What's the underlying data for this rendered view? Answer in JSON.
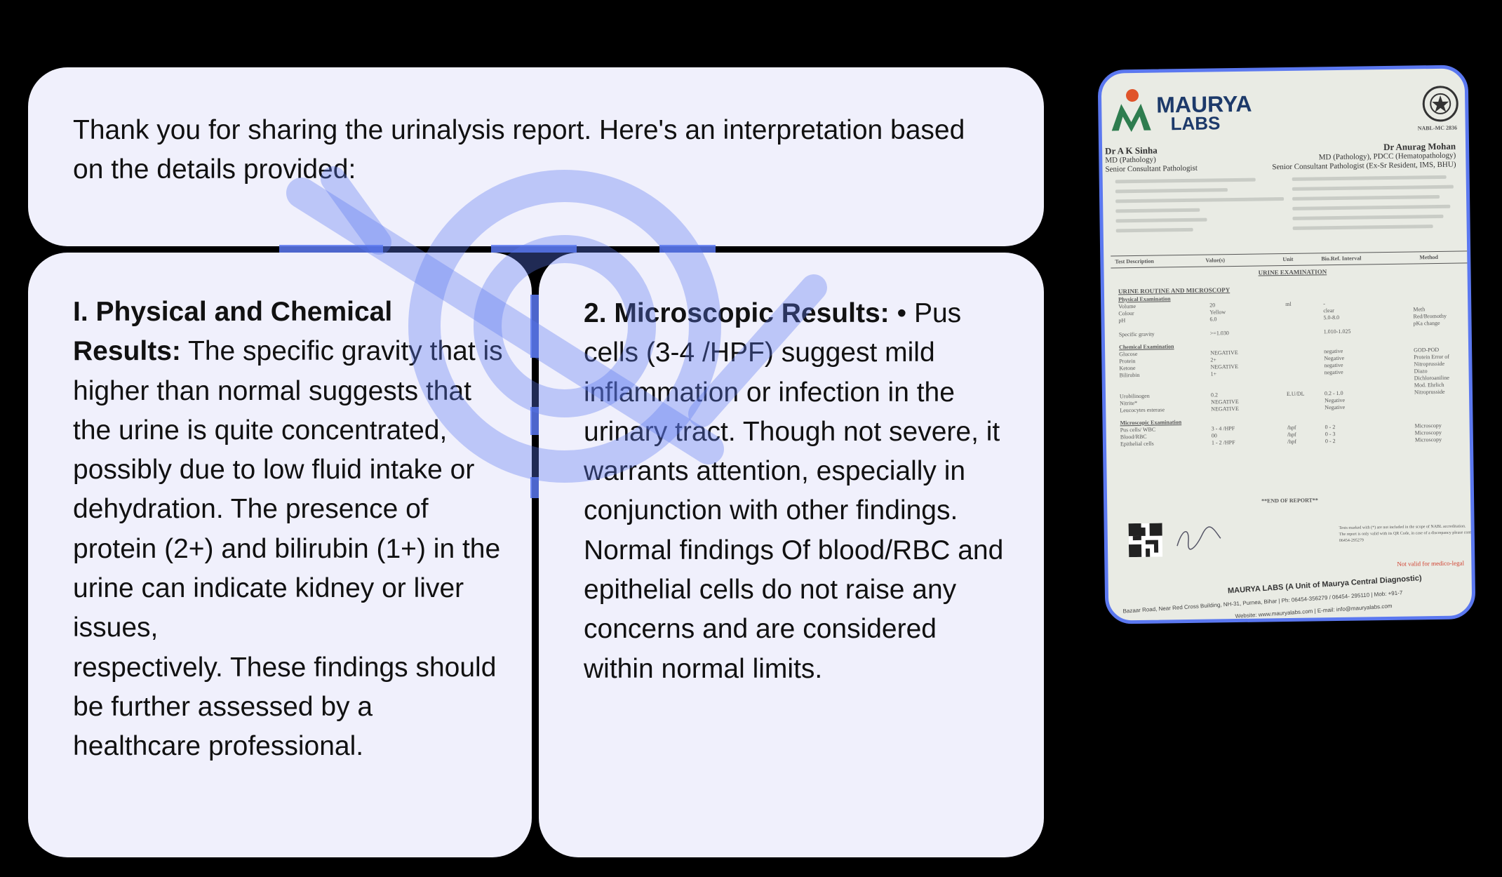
{
  "intro": {
    "text": "Thank you for sharing the urinalysis report. Here's an interpretation based on the details provided:"
  },
  "physical": {
    "heading": "I. Physical and Chemical Results:",
    "body": "The specific gravity that is higher than normal suggests that the urine is quite concentrated, possibly due to low fluid intake or dehydration. The presence of protein (2+) and bilirubin (1+) in the urine can indicate kidney or liver issues,",
    "body2": "respectively. These findings should be further assessed by a healthcare professional."
  },
  "microscopic": {
    "heading": "2. Microscopic Results:",
    "body": "• Pus cells (3-4 /HPF) suggest mild inflammation or infection in the urinary tract. Though not severe, it warrants attention, especially in conjunction with other findings.",
    "body2": "Normal findings Of blood/RBC and epithelial cells do not raise any concerns and are considered",
    "body3": "within normal limits."
  },
  "report": {
    "lab_name": "MAURYA",
    "lab_sub": "LABS",
    "accreditation": "NABL-MC 2836",
    "doctor_left": {
      "name": "Dr A K Sinha",
      "degree": "MD (Pathology)",
      "title": "Senior Consultant Pathologist"
    },
    "doctor_right": {
      "name": "Dr Anurag Mohan",
      "degree": "MD (Pathology), PDCC (Hematopathology)",
      "title": "Senior Consultant Pathologist (Ex-Sr Resident, IMS, BHU)"
    },
    "columns": [
      "Test Description",
      "Value(s)",
      "Unit",
      "Bio.Ref. Interval",
      "Method"
    ],
    "exam_title": "URINE EXAMINATION",
    "section_title": "URINE ROUTINE AND MICROSCOPY",
    "groups": [
      {
        "title": "Physical Examination",
        "rows": [
          [
            "Volume",
            "20",
            "ml",
            "-",
            ""
          ],
          [
            "Colour",
            "Yellow",
            "",
            "clear",
            "Meth"
          ],
          [
            "pH",
            "6.0",
            "",
            "5.0-8.0",
            "Red/Bromothy"
          ],
          [
            "",
            "",
            "",
            "",
            "pKa change"
          ],
          [
            "Specific gravity",
            ">=1.030",
            "",
            "1.010-1.025",
            ""
          ]
        ]
      },
      {
        "title": "Chemical Examination",
        "rows": [
          [
            "Glucose",
            "NEGATIVE",
            "",
            "negative",
            "GOD-POD"
          ],
          [
            "Protein",
            "2+",
            "",
            "Negative",
            "Protein Error of"
          ],
          [
            "Ketone",
            "NEGATIVE",
            "",
            "negative",
            "Nitroprusside"
          ],
          [
            "Bilirubin",
            "1+",
            "",
            "negative",
            "Diazo"
          ],
          [
            "",
            "",
            "",
            "",
            "Dichloroaniline"
          ],
          [
            "",
            "",
            "",
            "",
            "Mod. Ehrlich"
          ],
          [
            "Urobilinogen",
            "0.2",
            "E.U/DL",
            "0.2 - 1.0",
            "Nitroprusside"
          ],
          [
            "Nitrite*",
            "NEGATIVE",
            "",
            "Negative",
            ""
          ],
          [
            "Leucocytes esterase",
            "NEGATIVE",
            "",
            "Negative",
            ""
          ]
        ]
      },
      {
        "title": "Microscopic Examination",
        "rows": [
          [
            "Pus cells/ WBC",
            "3 - 4 /HPF",
            "/hpf",
            "0 - 2",
            "Microscopy"
          ],
          [
            "Blood/RBC",
            "00",
            "/hpf",
            "0 - 3",
            "Microscopy"
          ],
          [
            "Epithelial cells",
            "1 - 2 /HPF",
            "/hpf",
            "0 - 2",
            "Microscopy"
          ]
        ]
      }
    ],
    "end": "**END OF REPORT**",
    "note": "Tests marked with (*) are not included in the scope of NABL accreditation.",
    "note2": "The report is only valid with its QR Code, in case of a discrepancy please contact us",
    "note3": "06454-295279",
    "not_valid": "Not valid for medico-legal",
    "footer": "MAURYA LABS (A Unit of Maurya Central Diagnostic)",
    "address": "Bazaar Road, Near Red Cross Building, NH-31, Purnea, Bihar | Ph: 06454-356279 / 06454- 295110 | Mob: +91-7",
    "website": "Website: www.mauryalabs.com | E-mail: info@mauryalabs.com"
  },
  "colors": {
    "accent": "#5b78f0",
    "card": "#f0f0fc",
    "background": "#000000"
  }
}
